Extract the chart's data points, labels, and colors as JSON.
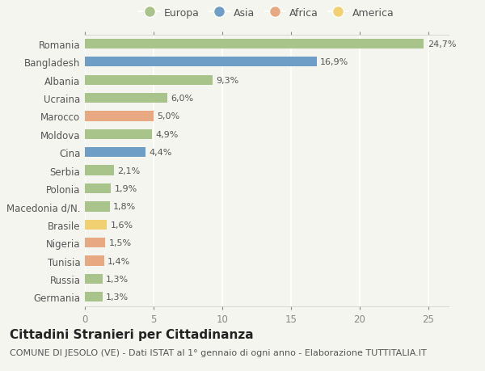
{
  "countries": [
    "Romania",
    "Bangladesh",
    "Albania",
    "Ucraina",
    "Marocco",
    "Moldova",
    "Cina",
    "Serbia",
    "Polonia",
    "Macedonia d/N.",
    "Brasile",
    "Nigeria",
    "Tunisia",
    "Russia",
    "Germania"
  ],
  "values": [
    24.7,
    16.9,
    9.3,
    6.0,
    5.0,
    4.9,
    4.4,
    2.1,
    1.9,
    1.8,
    1.6,
    1.5,
    1.4,
    1.3,
    1.3
  ],
  "labels": [
    "24,7%",
    "16,9%",
    "9,3%",
    "6,0%",
    "5,0%",
    "4,9%",
    "4,4%",
    "2,1%",
    "1,9%",
    "1,8%",
    "1,6%",
    "1,5%",
    "1,4%",
    "1,3%",
    "1,3%"
  ],
  "continents": [
    "Europa",
    "Asia",
    "Europa",
    "Europa",
    "Africa",
    "Europa",
    "Asia",
    "Europa",
    "Europa",
    "Europa",
    "America",
    "Africa",
    "Africa",
    "Europa",
    "Europa"
  ],
  "continent_colors": {
    "Europa": "#a8c48a",
    "Asia": "#6e9ec5",
    "Africa": "#e8a882",
    "America": "#f0d070"
  },
  "legend_order": [
    "Europa",
    "Asia",
    "Africa",
    "America"
  ],
  "title": "Cittadini Stranieri per Cittadinanza",
  "subtitle": "COMUNE DI JESOLO (VE) - Dati ISTAT al 1° gennaio di ogni anno - Elaborazione TUTTITALIA.IT",
  "xlim": [
    0,
    26.5
  ],
  "xticks": [
    0,
    5,
    10,
    15,
    20,
    25
  ],
  "background_color": "#f5f5f0",
  "grid_color": "#ffffff",
  "bar_height": 0.55,
  "title_fontsize": 11,
  "subtitle_fontsize": 8,
  "label_fontsize": 8,
  "tick_fontsize": 8.5,
  "legend_fontsize": 9
}
